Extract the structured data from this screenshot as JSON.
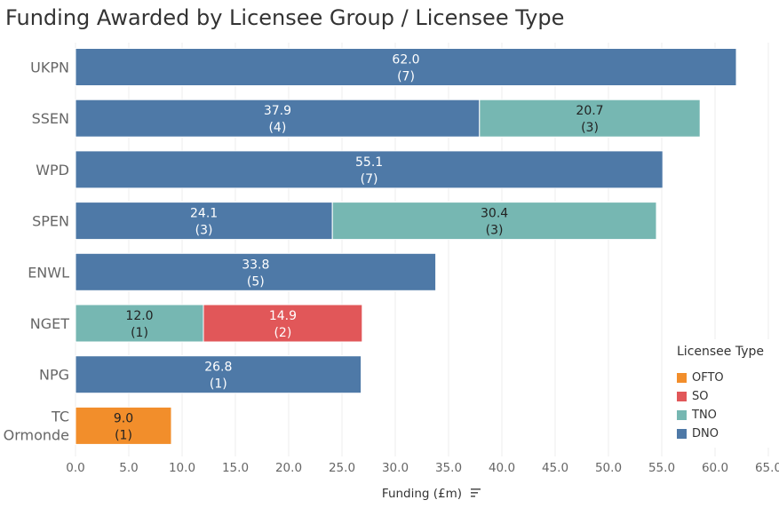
{
  "chart_data": {
    "type": "bar",
    "orientation": "horizontal",
    "stacked": true,
    "title": "Funding Awarded by Licensee Group / Licensee Type",
    "xlabel": "Funding (£m)",
    "xlim": [
      0,
      65
    ],
    "x_ticks": [
      "0.0",
      "5.0",
      "10.0",
      "15.0",
      "20.0",
      "25.0",
      "30.0",
      "35.0",
      "40.0",
      "45.0",
      "50.0",
      "55.0",
      "60.0",
      "65.0"
    ],
    "grid": "vertical",
    "legend": {
      "title": "Licensee Type",
      "position": "bottom-right",
      "items": [
        {
          "name": "OFTO",
          "color": "#f28e2b"
        },
        {
          "name": "SO",
          "color": "#e15759"
        },
        {
          "name": "TNO",
          "color": "#76b7b2"
        },
        {
          "name": "DNO",
          "color": "#4e79a7"
        }
      ]
    },
    "categories": [
      "UKPN",
      "SSEN",
      "WPD",
      "SPEN",
      "ENWL",
      "NGET",
      "NPG",
      "TC Ormonde"
    ],
    "bars": [
      {
        "category": "UKPN",
        "segments": [
          {
            "type": "DNO",
            "value": 62.0,
            "label": "62.0",
            "count": "(7)"
          }
        ]
      },
      {
        "category": "SSEN",
        "segments": [
          {
            "type": "DNO",
            "value": 37.9,
            "label": "37.9",
            "count": "(4)"
          },
          {
            "type": "TNO",
            "value": 20.7,
            "label": "20.7",
            "count": "(3)"
          }
        ]
      },
      {
        "category": "WPD",
        "segments": [
          {
            "type": "DNO",
            "value": 55.1,
            "label": "55.1",
            "count": "(7)"
          }
        ]
      },
      {
        "category": "SPEN",
        "segments": [
          {
            "type": "DNO",
            "value": 24.1,
            "label": "24.1",
            "count": "(3)"
          },
          {
            "type": "TNO",
            "value": 30.4,
            "label": "30.4",
            "count": "(3)"
          }
        ]
      },
      {
        "category": "ENWL",
        "segments": [
          {
            "type": "DNO",
            "value": 33.8,
            "label": "33.8",
            "count": "(5)"
          }
        ]
      },
      {
        "category": "NGET",
        "segments": [
          {
            "type": "TNO",
            "value": 12.0,
            "label": "12.0",
            "count": "(1)"
          },
          {
            "type": "SO",
            "value": 14.9,
            "label": "14.9",
            "count": "(2)"
          }
        ]
      },
      {
        "category": "NPG",
        "segments": [
          {
            "type": "DNO",
            "value": 26.8,
            "label": "26.8",
            "count": "(1)"
          }
        ]
      },
      {
        "category": "TC Ormonde",
        "segments": [
          {
            "type": "OFTO",
            "value": 9.0,
            "label": "9.0",
            "count": "(1)"
          }
        ]
      }
    ]
  }
}
